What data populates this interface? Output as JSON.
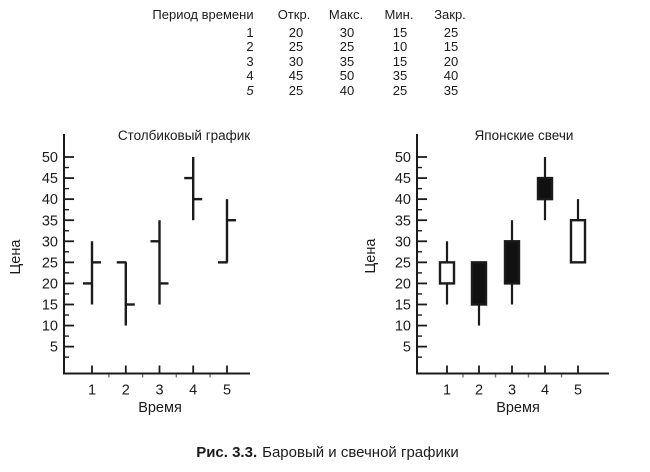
{
  "colors": {
    "ink": "#1b1b1b",
    "paper": "#ffffff",
    "bull_fill": "#ffffff",
    "bear_fill": "#111111"
  },
  "table": {
    "headers": [
      "Период времени",
      "Откр.",
      "Макс.",
      "Мин.",
      "Закр."
    ],
    "rows": [
      {
        "period": "1",
        "values": [
          "20",
          "30",
          "15",
          "25"
        ],
        "italic": false
      },
      {
        "period": "2",
        "values": [
          "25",
          "25",
          "10",
          "15"
        ],
        "italic": false
      },
      {
        "period": "3",
        "values": [
          "30",
          "35",
          "15",
          "20"
        ],
        "italic": false
      },
      {
        "period": "4",
        "values": [
          "45",
          "50",
          "35",
          "40"
        ],
        "italic": false
      },
      {
        "period": "5",
        "values": [
          "25",
          "40",
          "25",
          "35"
        ],
        "italic": true
      }
    ]
  },
  "chart_data": [
    {
      "type": "ohlc-bar",
      "title": "Столбиковый график",
      "xlabel": "Время",
      "ylabel": "Цена",
      "categories": [
        1,
        2,
        3,
        4,
        5
      ],
      "open": [
        20,
        25,
        30,
        45,
        25
      ],
      "high": [
        30,
        25,
        35,
        50,
        40
      ],
      "low": [
        15,
        10,
        15,
        35,
        25
      ],
      "close": [
        25,
        15,
        20,
        40,
        35
      ],
      "yticks": [
        5,
        10,
        15,
        20,
        25,
        30,
        35,
        40,
        45,
        50
      ],
      "ylim": [
        0,
        55
      ],
      "grid": false,
      "legend": "none"
    },
    {
      "type": "candlestick",
      "title": "Японские свечи",
      "xlabel": "Время",
      "ylabel": "Цена",
      "categories": [
        1,
        2,
        3,
        4,
        5
      ],
      "open": [
        20,
        25,
        30,
        45,
        25
      ],
      "high": [
        30,
        25,
        35,
        50,
        40
      ],
      "low": [
        15,
        10,
        15,
        35,
        25
      ],
      "close": [
        25,
        15,
        20,
        40,
        35
      ],
      "yticks": [
        5,
        10,
        15,
        20,
        25,
        30,
        35,
        40,
        45,
        50
      ],
      "ylim": [
        0,
        55
      ],
      "grid": false,
      "legend": "none",
      "up_color": "white",
      "down_color": "black"
    }
  ],
  "caption": {
    "label": "Рис. 3.3.",
    "text": "Баровый и свечной графики"
  }
}
